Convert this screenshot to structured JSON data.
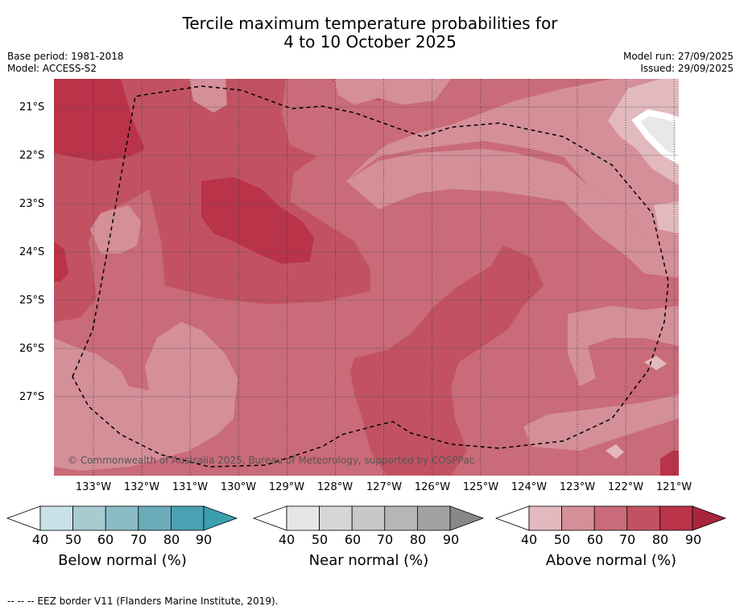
{
  "title_line1": "Tercile maximum temperature probabilities for",
  "title_line2": "4 to 10 October 2025",
  "meta_left": [
    "Base period: 1981-2018",
    "Model: ACCESS-S2"
  ],
  "meta_right": [
    "Model run: 27/09/2025",
    "Issued: 29/09/2025"
  ],
  "lat_labels": [
    "21°S",
    "22°S",
    "23°S",
    "24°S",
    "25°S",
    "26°S",
    "27°S"
  ],
  "lon_labels": [
    "133°W",
    "132°W",
    "131°W",
    "130°W",
    "129°W",
    "128°W",
    "127°W",
    "126°W",
    "125°W",
    "124°W",
    "123°W",
    "122°W",
    "121°W"
  ],
  "copyright": "© Commonwealth of Australia 2025, Bureau of Meteorology, supported by COSPPac",
  "colorbars": [
    {
      "title": "Below normal (%)",
      "ticks": [
        "40",
        "50",
        "60",
        "70",
        "80",
        "90"
      ],
      "colors": [
        "#ffffff",
        "#c9e2e7",
        "#a8cbd2",
        "#8bbcc6",
        "#6cacba",
        "#4aa1b2",
        "#3b9fae"
      ]
    },
    {
      "title": "Near normal (%)",
      "ticks": [
        "40",
        "50",
        "60",
        "70",
        "80",
        "90"
      ],
      "colors": [
        "#ffffff",
        "#e6e6e6",
        "#d6d6d6",
        "#c8c8c8",
        "#b6b6b6",
        "#a2a2a2",
        "#888888"
      ]
    },
    {
      "title": "Above normal (%)",
      "ticks": [
        "40",
        "50",
        "60",
        "70",
        "80",
        "90"
      ],
      "colors": [
        "#ffffff",
        "#e2b9be",
        "#d48f99",
        "#c96b78",
        "#c25262",
        "#b93349",
        "#a8263c"
      ]
    }
  ],
  "footnote": "--  --  -- EEZ border V11 (Flanders Marine Institute, 2019).",
  "map_colors": {
    "c40": "#e2b9be",
    "c50": "#d48f99",
    "c60": "#c96b78",
    "c70": "#c25262",
    "c80": "#b93349",
    "land": "#e8e8e8"
  }
}
